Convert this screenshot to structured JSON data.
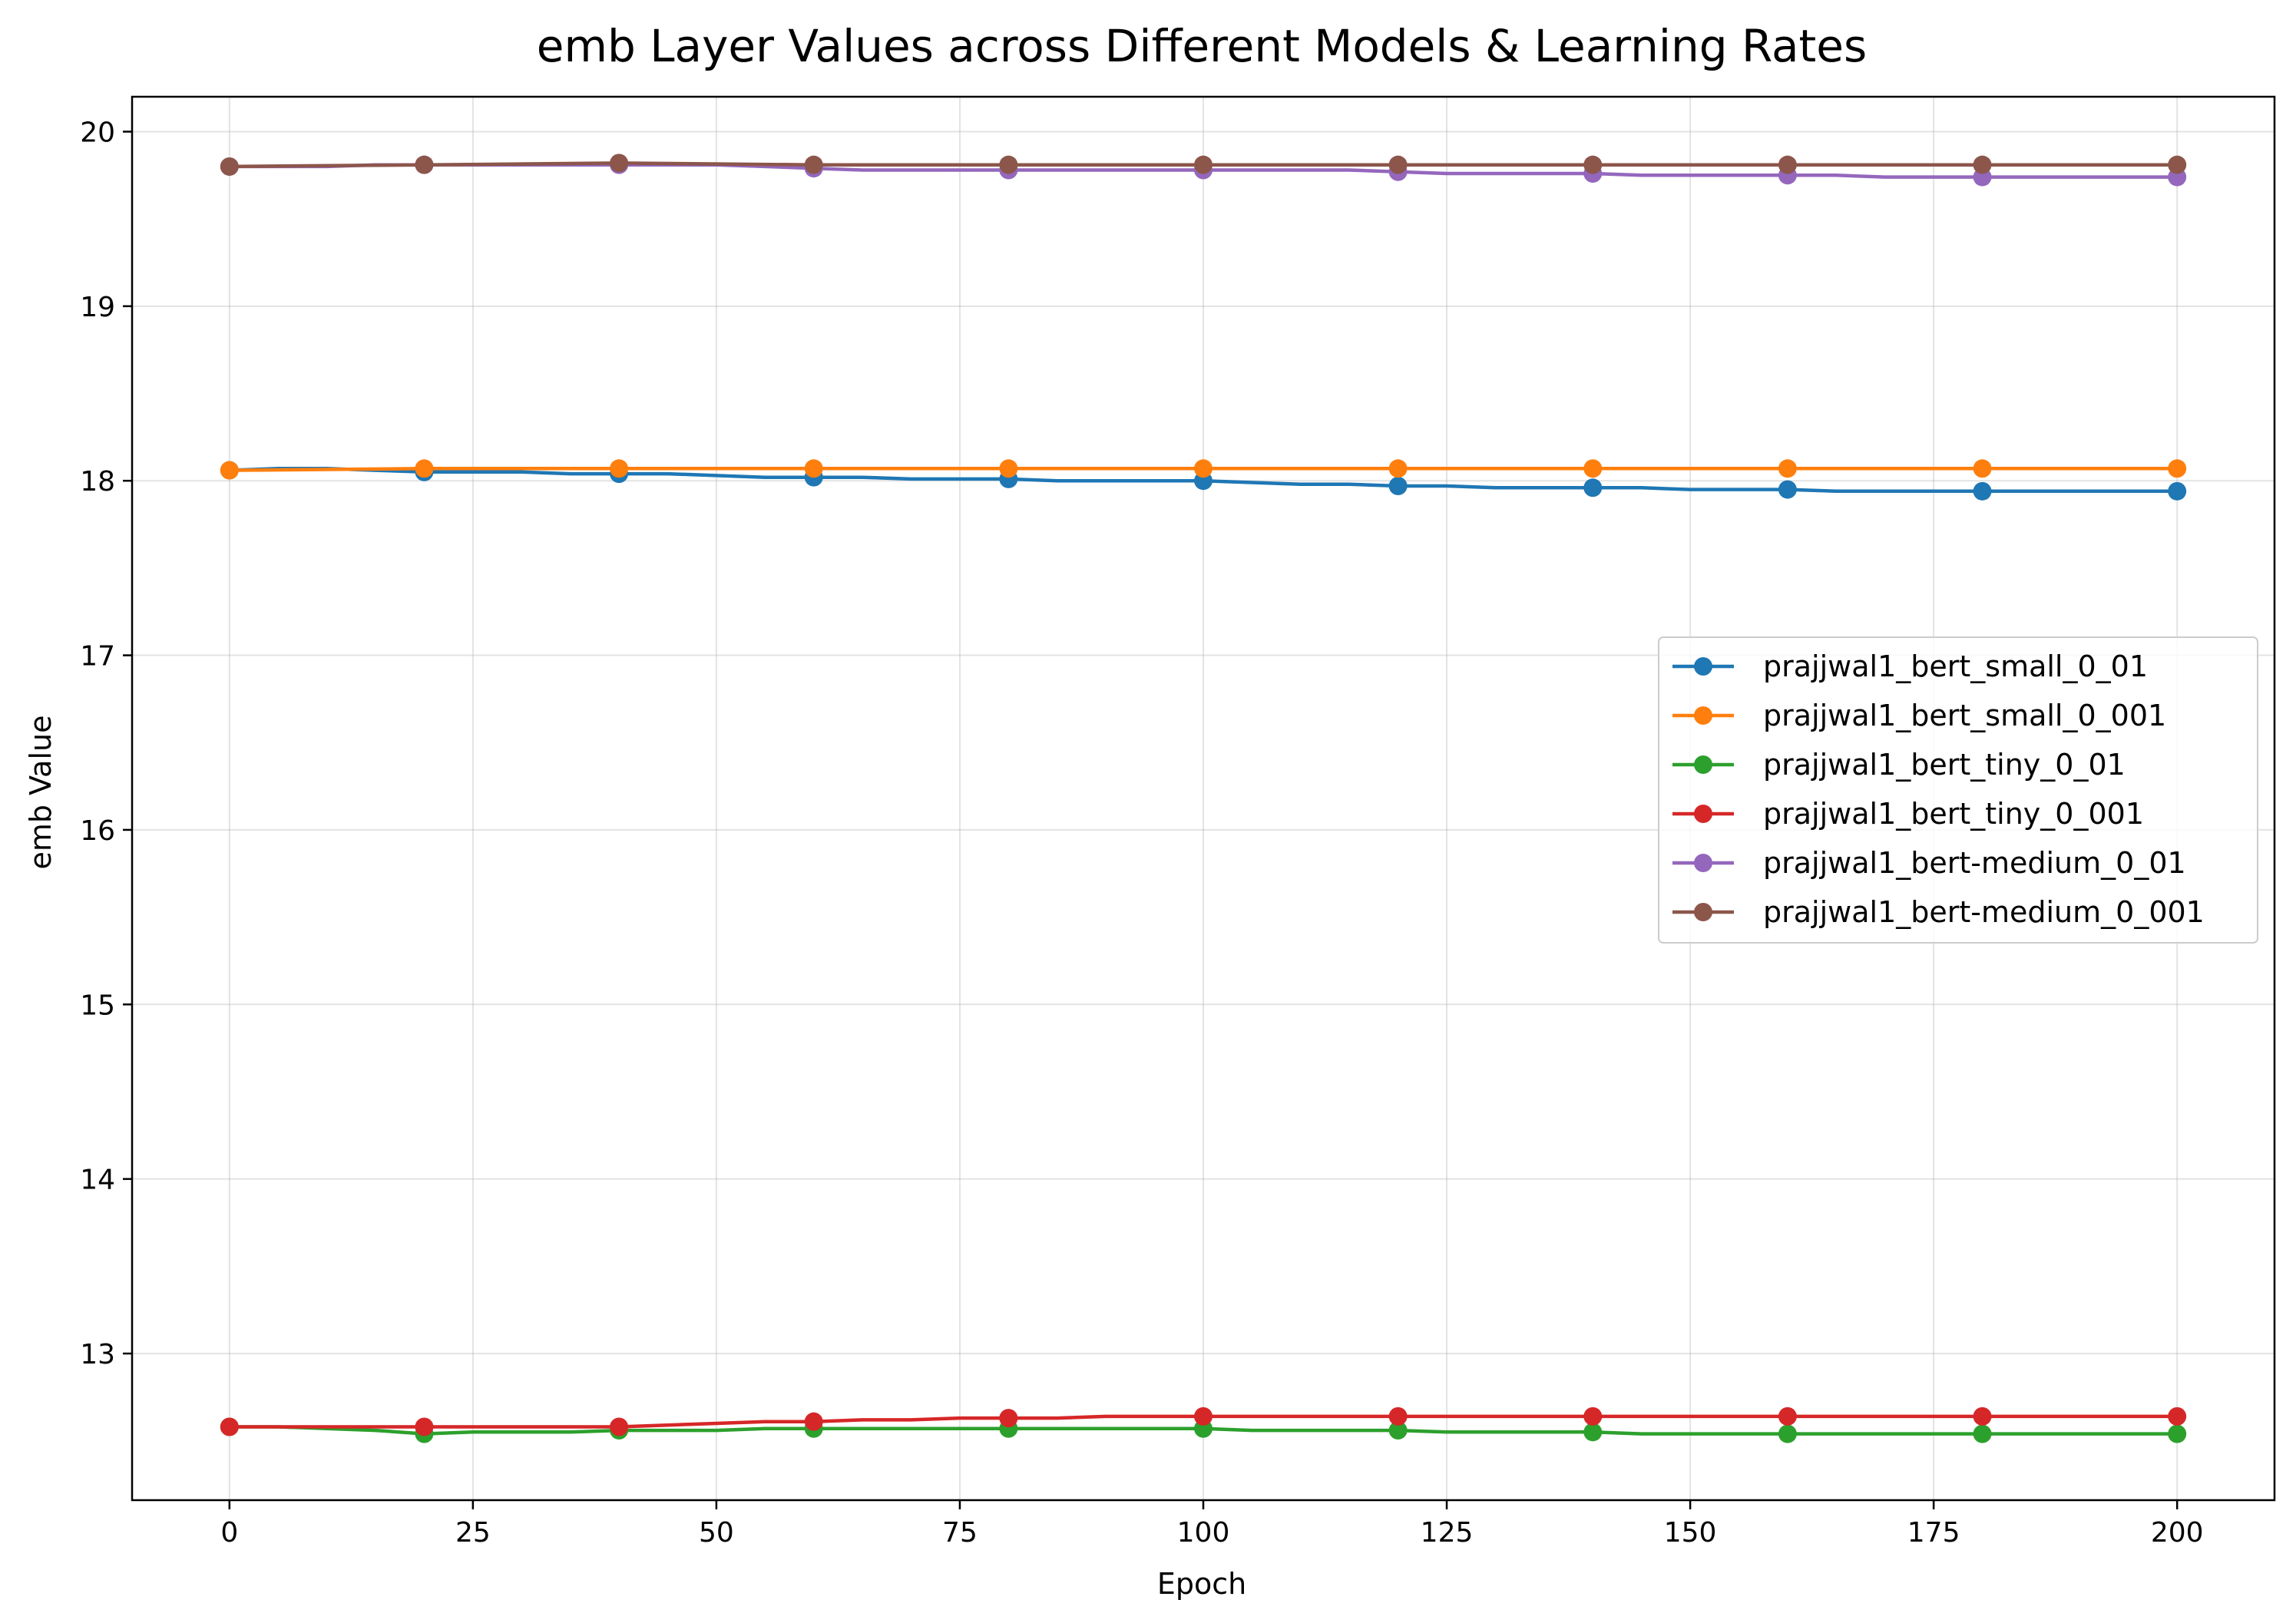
{
  "chart_data": {
    "type": "line",
    "title": "emb Layer Values across Different Models & Learning Rates",
    "xlabel": "Epoch",
    "ylabel": "emb Value",
    "xlim": [
      -10,
      210
    ],
    "ylim": [
      12.16,
      20.2
    ],
    "xticks": [
      0,
      25,
      50,
      75,
      100,
      125,
      150,
      175,
      200
    ],
    "yticks": [
      13,
      14,
      15,
      16,
      17,
      18,
      19,
      20
    ],
    "grid": true,
    "legend_position": "center-right",
    "marker_epochs": [
      0,
      20,
      40,
      60,
      80,
      100,
      120,
      140,
      160,
      180,
      200
    ],
    "series": [
      {
        "name": "prajjwal1_bert_small_0_01",
        "color": "#1f77b4",
        "x": [
          0,
          5,
          10,
          15,
          20,
          25,
          30,
          35,
          40,
          45,
          50,
          55,
          60,
          65,
          70,
          75,
          80,
          85,
          90,
          95,
          100,
          105,
          110,
          115,
          120,
          125,
          130,
          135,
          140,
          145,
          150,
          155,
          160,
          165,
          170,
          175,
          180,
          185,
          190,
          195,
          200
        ],
        "y": [
          18.06,
          18.07,
          18.07,
          18.06,
          18.05,
          18.05,
          18.05,
          18.04,
          18.04,
          18.04,
          18.03,
          18.02,
          18.02,
          18.02,
          18.01,
          18.01,
          18.01,
          18.0,
          18.0,
          18.0,
          18.0,
          17.99,
          17.98,
          17.98,
          17.97,
          17.97,
          17.96,
          17.96,
          17.96,
          17.96,
          17.95,
          17.95,
          17.95,
          17.94,
          17.94,
          17.94,
          17.94,
          17.94,
          17.94,
          17.94,
          17.94
        ]
      },
      {
        "name": "prajjwal1_bert_small_0_001",
        "color": "#ff7f0e",
        "x": [
          0,
          20,
          40,
          60,
          80,
          100,
          120,
          140,
          160,
          180,
          200
        ],
        "y": [
          18.06,
          18.07,
          18.07,
          18.07,
          18.07,
          18.07,
          18.07,
          18.07,
          18.07,
          18.07,
          18.07
        ]
      },
      {
        "name": "prajjwal1_bert_tiny_0_01",
        "color": "#2ca02c",
        "x": [
          0,
          5,
          10,
          15,
          20,
          25,
          30,
          35,
          40,
          45,
          50,
          55,
          60,
          65,
          70,
          75,
          80,
          85,
          90,
          95,
          100,
          105,
          110,
          115,
          120,
          125,
          130,
          135,
          140,
          145,
          150,
          155,
          160,
          165,
          170,
          175,
          180,
          185,
          190,
          195,
          200
        ],
        "y": [
          12.58,
          12.58,
          12.57,
          12.56,
          12.54,
          12.55,
          12.55,
          12.55,
          12.56,
          12.56,
          12.56,
          12.57,
          12.57,
          12.57,
          12.57,
          12.57,
          12.57,
          12.57,
          12.57,
          12.57,
          12.57,
          12.56,
          12.56,
          12.56,
          12.56,
          12.55,
          12.55,
          12.55,
          12.55,
          12.54,
          12.54,
          12.54,
          12.54,
          12.54,
          12.54,
          12.54,
          12.54,
          12.54,
          12.54,
          12.54,
          12.54
        ]
      },
      {
        "name": "prajjwal1_bert_tiny_0_001",
        "color": "#d62728",
        "x": [
          0,
          5,
          10,
          15,
          20,
          25,
          30,
          35,
          40,
          45,
          50,
          55,
          60,
          65,
          70,
          75,
          80,
          85,
          90,
          95,
          100,
          105,
          110,
          115,
          120,
          125,
          130,
          135,
          140,
          145,
          150,
          155,
          160,
          165,
          170,
          175,
          180,
          185,
          190,
          195,
          200
        ],
        "y": [
          12.58,
          12.58,
          12.58,
          12.58,
          12.58,
          12.58,
          12.58,
          12.58,
          12.58,
          12.59,
          12.6,
          12.61,
          12.61,
          12.62,
          12.62,
          12.63,
          12.63,
          12.63,
          12.64,
          12.64,
          12.64,
          12.64,
          12.64,
          12.64,
          12.64,
          12.64,
          12.64,
          12.64,
          12.64,
          12.64,
          12.64,
          12.64,
          12.64,
          12.64,
          12.64,
          12.64,
          12.64,
          12.64,
          12.64,
          12.64,
          12.64
        ]
      },
      {
        "name": "prajjwal1_bert-medium_0_01",
        "color": "#9467bd",
        "x": [
          0,
          5,
          10,
          15,
          20,
          25,
          30,
          35,
          40,
          45,
          50,
          55,
          60,
          65,
          70,
          75,
          80,
          85,
          90,
          95,
          100,
          105,
          110,
          115,
          120,
          125,
          130,
          135,
          140,
          145,
          150,
          155,
          160,
          165,
          170,
          175,
          180,
          185,
          190,
          195,
          200
        ],
        "y": [
          19.8,
          19.8,
          19.8,
          19.81,
          19.81,
          19.81,
          19.81,
          19.81,
          19.81,
          19.81,
          19.81,
          19.8,
          19.79,
          19.78,
          19.78,
          19.78,
          19.78,
          19.78,
          19.78,
          19.78,
          19.78,
          19.78,
          19.78,
          19.78,
          19.77,
          19.76,
          19.76,
          19.76,
          19.76,
          19.75,
          19.75,
          19.75,
          19.75,
          19.75,
          19.74,
          19.74,
          19.74,
          19.74,
          19.74,
          19.74,
          19.74
        ]
      },
      {
        "name": "prajjwal1_bert-medium_0_001",
        "color": "#8c564b",
        "x": [
          0,
          20,
          40,
          60,
          80,
          100,
          120,
          140,
          160,
          180,
          200
        ],
        "y": [
          19.8,
          19.81,
          19.82,
          19.81,
          19.81,
          19.81,
          19.81,
          19.81,
          19.81,
          19.81,
          19.81
        ]
      }
    ]
  }
}
